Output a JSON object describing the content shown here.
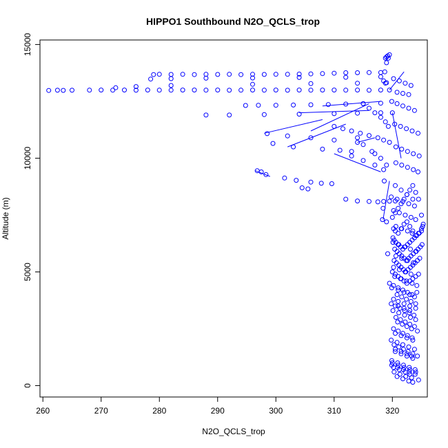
{
  "chart_data": {
    "type": "scatter",
    "title": "HIPPO1 Southbound N2O_QCLS_trop",
    "xlabel": "N2O_QCLS_trop",
    "ylabel": "Altitude (m)",
    "xlim": [
      259.5,
      326.0
    ],
    "ylim": [
      -500,
      15200
    ],
    "xticks": [
      260,
      270,
      280,
      290,
      300,
      310,
      320
    ],
    "xtick_labels": [
      "260",
      "270",
      "280",
      "290",
      "300",
      "310",
      "320"
    ],
    "yticks": [
      0,
      5000,
      10000,
      15000
    ],
    "ytick_labels": [
      "0",
      "5000",
      "10000",
      "15000"
    ],
    "grid": false,
    "legend": "none",
    "color": "#0000ff",
    "series": [
      {
        "style": "points-and-lines",
        "x": [
          261,
          262.5,
          263.5,
          265,
          268,
          270,
          272,
          274,
          276,
          278,
          280,
          282,
          284,
          286,
          288,
          290,
          292,
          294,
          296,
          298,
          300,
          302,
          304,
          306,
          308,
          310,
          312,
          314,
          316,
          318,
          319.5,
          279,
          280,
          282,
          284,
          286,
          288,
          290,
          292,
          294,
          296,
          298,
          300,
          302,
          304,
          306,
          308,
          310,
          312,
          314,
          316,
          318,
          278.5,
          282,
          288,
          296,
          304,
          312,
          318,
          272.5,
          276,
          282,
          296,
          306,
          314,
          319,
          294.8,
          297,
          300,
          303,
          306,
          309,
          312,
          315,
          318,
          288,
          292,
          298,
          304,
          310,
          314,
          318,
          320,
          298.5,
          302,
          306,
          310,
          314,
          299.5,
          303,
          308,
          313,
          317,
          296.8,
          297.5,
          298.3,
          301.5,
          303.5,
          306,
          307.8,
          309.6,
          304.5,
          305.5,
          312,
          314,
          316,
          317.5,
          318.5,
          319.5,
          320.5,
          311,
          313,
          315,
          317,
          318.5,
          315,
          316,
          317,
          318,
          318.8,
          319.3,
          310,
          311.5,
          313,
          314.5,
          316,
          317.5,
          318.5,
          319.5,
          314,
          315,
          316.5,
          318,
          319,
          318.8,
          319,
          319.2,
          319.5,
          319.3,
          319.0,
          318.7,
          318.5,
          318.8,
          318.3,
          319,
          320,
          320.5,
          321,
          321.5,
          322,
          322.5,
          323,
          323.5,
          324,
          324.5,
          325,
          320.2,
          320.5,
          321,
          321.5,
          322,
          322.5,
          323,
          323.5,
          324,
          324.5,
          325,
          325.3,
          320.1,
          320.3,
          320.6,
          321,
          321.4,
          321.8,
          322.2,
          322.6,
          323,
          323.4,
          323.8,
          324.2,
          324.6,
          325,
          325.2,
          320.4,
          320.8,
          321.2,
          321.6,
          322,
          322.4,
          322.8,
          323.2,
          323.6,
          324,
          324.4,
          324.8,
          325.1,
          320.3,
          320.7,
          321.1,
          321.5,
          321.9,
          322.3,
          322.7,
          323.1,
          323.5,
          323.9,
          324.3,
          324.7,
          320,
          320.5,
          321,
          321.5,
          322,
          322.5,
          323,
          323.5,
          324,
          324.5,
          319.5,
          320.2,
          321,
          321.8,
          322.6,
          323.4,
          324.2,
          320.8,
          321.6,
          322.4,
          323.2,
          324,
          320.5,
          321.3,
          322.1,
          322.9,
          323.7,
          320.6,
          321.4,
          322.2,
          323,
          323.8,
          320.2,
          321,
          321.8,
          322.6,
          323.4,
          319.8,
          320.8,
          321.8,
          322.8,
          323.8,
          320.5,
          321.5,
          322.5,
          323.5,
          320,
          321,
          322,
          323,
          324,
          320.8,
          321.8,
          322.8,
          323.5,
          324.5,
          318.6,
          320.5,
          321.5,
          322.5,
          323.5,
          318.4,
          320.2,
          321.2,
          322.2,
          323.2,
          324,
          319.2,
          320.6,
          321.6,
          322.6,
          323.6,
          320.4,
          321.4,
          322.4,
          323.4,
          324.2,
          320.2,
          321,
          322,
          323,
          324,
          320.9,
          321.7,
          322.5,
          323.3,
          324.3,
          320.3,
          321.1,
          321.9,
          322.7,
          323.5,
          324.3,
          319.9,
          320.9,
          321.9,
          322.9,
          323.9,
          320.6,
          321.6,
          322.6,
          323.6,
          324.6,
          320.4,
          321.4,
          322.4,
          323.4,
          324.4,
          319.9,
          320.8,
          321.8,
          322.8,
          323.8,
          320.2,
          321.2,
          322.2,
          323.2,
          320.6,
          321.6,
          322.6,
          323.6,
          324.4,
          319.8,
          320.8,
          321.8,
          322.8,
          323.8,
          320.1,
          321.1,
          322.1,
          323.1,
          324.1,
          319.9,
          321,
          322,
          323,
          323.8,
          320.5,
          321.5,
          322.5,
          323.5,
          319.9,
          320.9,
          321.9,
          322.9,
          323.9,
          320.3,
          321.3,
          322.3,
          323.3,
          320.1,
          321.1,
          322.1,
          323.1,
          324,
          320.6,
          321.6,
          322.6,
          323.4,
          320.2,
          321.2,
          322.2,
          323.2,
          319.8,
          321,
          322,
          323,
          320.5,
          321.5,
          322.5,
          323.3,
          320.2,
          321.2,
          322.2,
          323,
          320.8,
          321.8,
          322.8
        ],
        "y": [
          12980,
          12990,
          12985,
          12990,
          12995,
          13000,
          12995,
          13000,
          12990,
          13000,
          12995,
          12995,
          13000,
          13000,
          12995,
          13000,
          12990,
          12995,
          13000,
          12995,
          13000,
          12990,
          13000,
          12995,
          13000,
          13000,
          12995,
          13000,
          12990,
          13000,
          13000,
          13680,
          13690,
          13685,
          13690,
          13680,
          13690,
          13685,
          13690,
          13680,
          13690,
          13685,
          13690,
          13690,
          13700,
          13710,
          13720,
          13740,
          13760,
          13760,
          13770,
          13770,
          13480,
          13500,
          13520,
          13530,
          13550,
          13560,
          13580,
          13100,
          13150,
          13200,
          13250,
          13280,
          13300,
          13320,
          12320,
          12330,
          12330,
          12340,
          12350,
          12360,
          12380,
          12400,
          12420,
          11900,
          11900,
          11920,
          11940,
          11960,
          11980,
          12000,
          12000,
          11080,
          10980,
          10900,
          10800,
          10700,
          10650,
          10500,
          10400,
          10300,
          10200,
          9450,
          9400,
          9280,
          9130,
          9030,
          8950,
          8900,
          8880,
          8700,
          8650,
          8200,
          8120,
          8100,
          8080,
          8100,
          8110,
          8120,
          10350,
          10100,
          9900,
          9700,
          9500,
          12400,
          12200,
          12000,
          11800,
          11600,
          11400,
          11400,
          11300,
          11200,
          11100,
          11000,
          10900,
          10800,
          10700,
          10900,
          10600,
          10300,
          10000,
          9700,
          14400,
          14450,
          14500,
          14550,
          14400,
          14200,
          13800,
          13400,
          13300,
          7300,
          7200,
          7400,
          7600,
          7800,
          8000,
          8200,
          8400,
          8600,
          8800,
          8500,
          8200,
          7500,
          6900,
          6800,
          6700,
          6900,
          7100,
          7200,
          7000,
          6800,
          6600,
          6700,
          6900,
          7100,
          6500,
          6400,
          6300,
          6200,
          6100,
          6000,
          6100,
          6200,
          6300,
          6400,
          6500,
          6600,
          6700,
          6800,
          7000,
          6000,
          5900,
          5800,
          5700,
          5600,
          5500,
          5600,
          5700,
          5800,
          5900,
          6000,
          6100,
          6200,
          5500,
          5400,
          5300,
          5200,
          5100,
          5000,
          5100,
          5200,
          5300,
          5400,
          5500,
          5600,
          5000,
          4900,
          4800,
          4700,
          4600,
          4500,
          4600,
          4700,
          4800,
          4900,
          4500,
          4400,
          4300,
          4200,
          4100,
          4000,
          4100,
          4000,
          3900,
          3800,
          3700,
          3600,
          3500,
          3400,
          3300,
          3200,
          3100,
          3000,
          2900,
          2800,
          2700,
          2600,
          2500,
          2400,
          2300,
          2200,
          2100,
          2000,
          1900,
          1800,
          1700,
          1600,
          1500,
          1400,
          1300,
          1200,
          1000,
          900,
          800,
          700,
          600,
          400,
          300,
          200,
          150,
          250,
          9000,
          8800,
          8600,
          8400,
          8200,
          7800,
          7700,
          7600,
          7500,
          7400,
          7300,
          5800,
          5700,
          5600,
          5500,
          5400,
          4800,
          4700,
          4600,
          4500,
          4400,
          3800,
          3700,
          3600,
          3500,
          3400,
          2800,
          2700,
          2600,
          2500,
          2400,
          1800,
          1700,
          1600,
          1500,
          1400,
          1300,
          900,
          800,
          700,
          600,
          500,
          10500,
          10400,
          10300,
          10200,
          10100,
          11500,
          11400,
          11300,
          11200,
          11100,
          12500,
          12400,
          12300,
          12200,
          12100,
          13500,
          13400,
          13300,
          13200,
          9800,
          9700,
          9600,
          9500,
          9400,
          8300,
          8200,
          8100,
          8000,
          7900,
          6300,
          6200,
          6100,
          6000,
          5900,
          4300,
          4200,
          4100,
          4000,
          3900,
          2300,
          2200,
          2100,
          2000,
          1100,
          1000,
          900,
          800,
          700,
          600,
          500,
          400,
          350,
          3300,
          3200,
          3100,
          3000,
          2900,
          7000,
          6900,
          6800,
          6700,
          5200,
          5100,
          5000,
          4900,
          3600,
          3500,
          3400,
          3300,
          1600,
          1500,
          1400,
          1300,
          800,
          700,
          600,
          500,
          12900,
          12850,
          12800
        ]
      },
      {
        "style": "lines",
        "segments": [
          [
            [
              319.5,
              13000
            ],
            [
              322,
              13800
            ]
          ],
          [
            [
              320,
              12000
            ],
            [
              321.5,
              10000
            ]
          ],
          [
            [
              318.4,
              7300
            ],
            [
              319.5,
              9000
            ]
          ],
          [
            [
              306,
              11200
            ],
            [
              316,
              12400
            ]
          ],
          [
            [
              302,
              10500
            ],
            [
              312,
              11500
            ]
          ],
          [
            [
              296.5,
              9450
            ],
            [
              299,
              9200
            ]
          ],
          [
            [
              310,
              10200
            ],
            [
              318,
              9400
            ]
          ],
          [
            [
              298,
              11100
            ],
            [
              308,
              11700
            ]
          ],
          [
            [
              314,
              10700
            ],
            [
              317,
              10900
            ]
          ],
          [
            [
              308,
              12300
            ],
            [
              318,
              12500
            ]
          ],
          [
            [
              304,
              12000
            ],
            [
              316,
              12100
            ]
          ]
        ]
      }
    ]
  }
}
